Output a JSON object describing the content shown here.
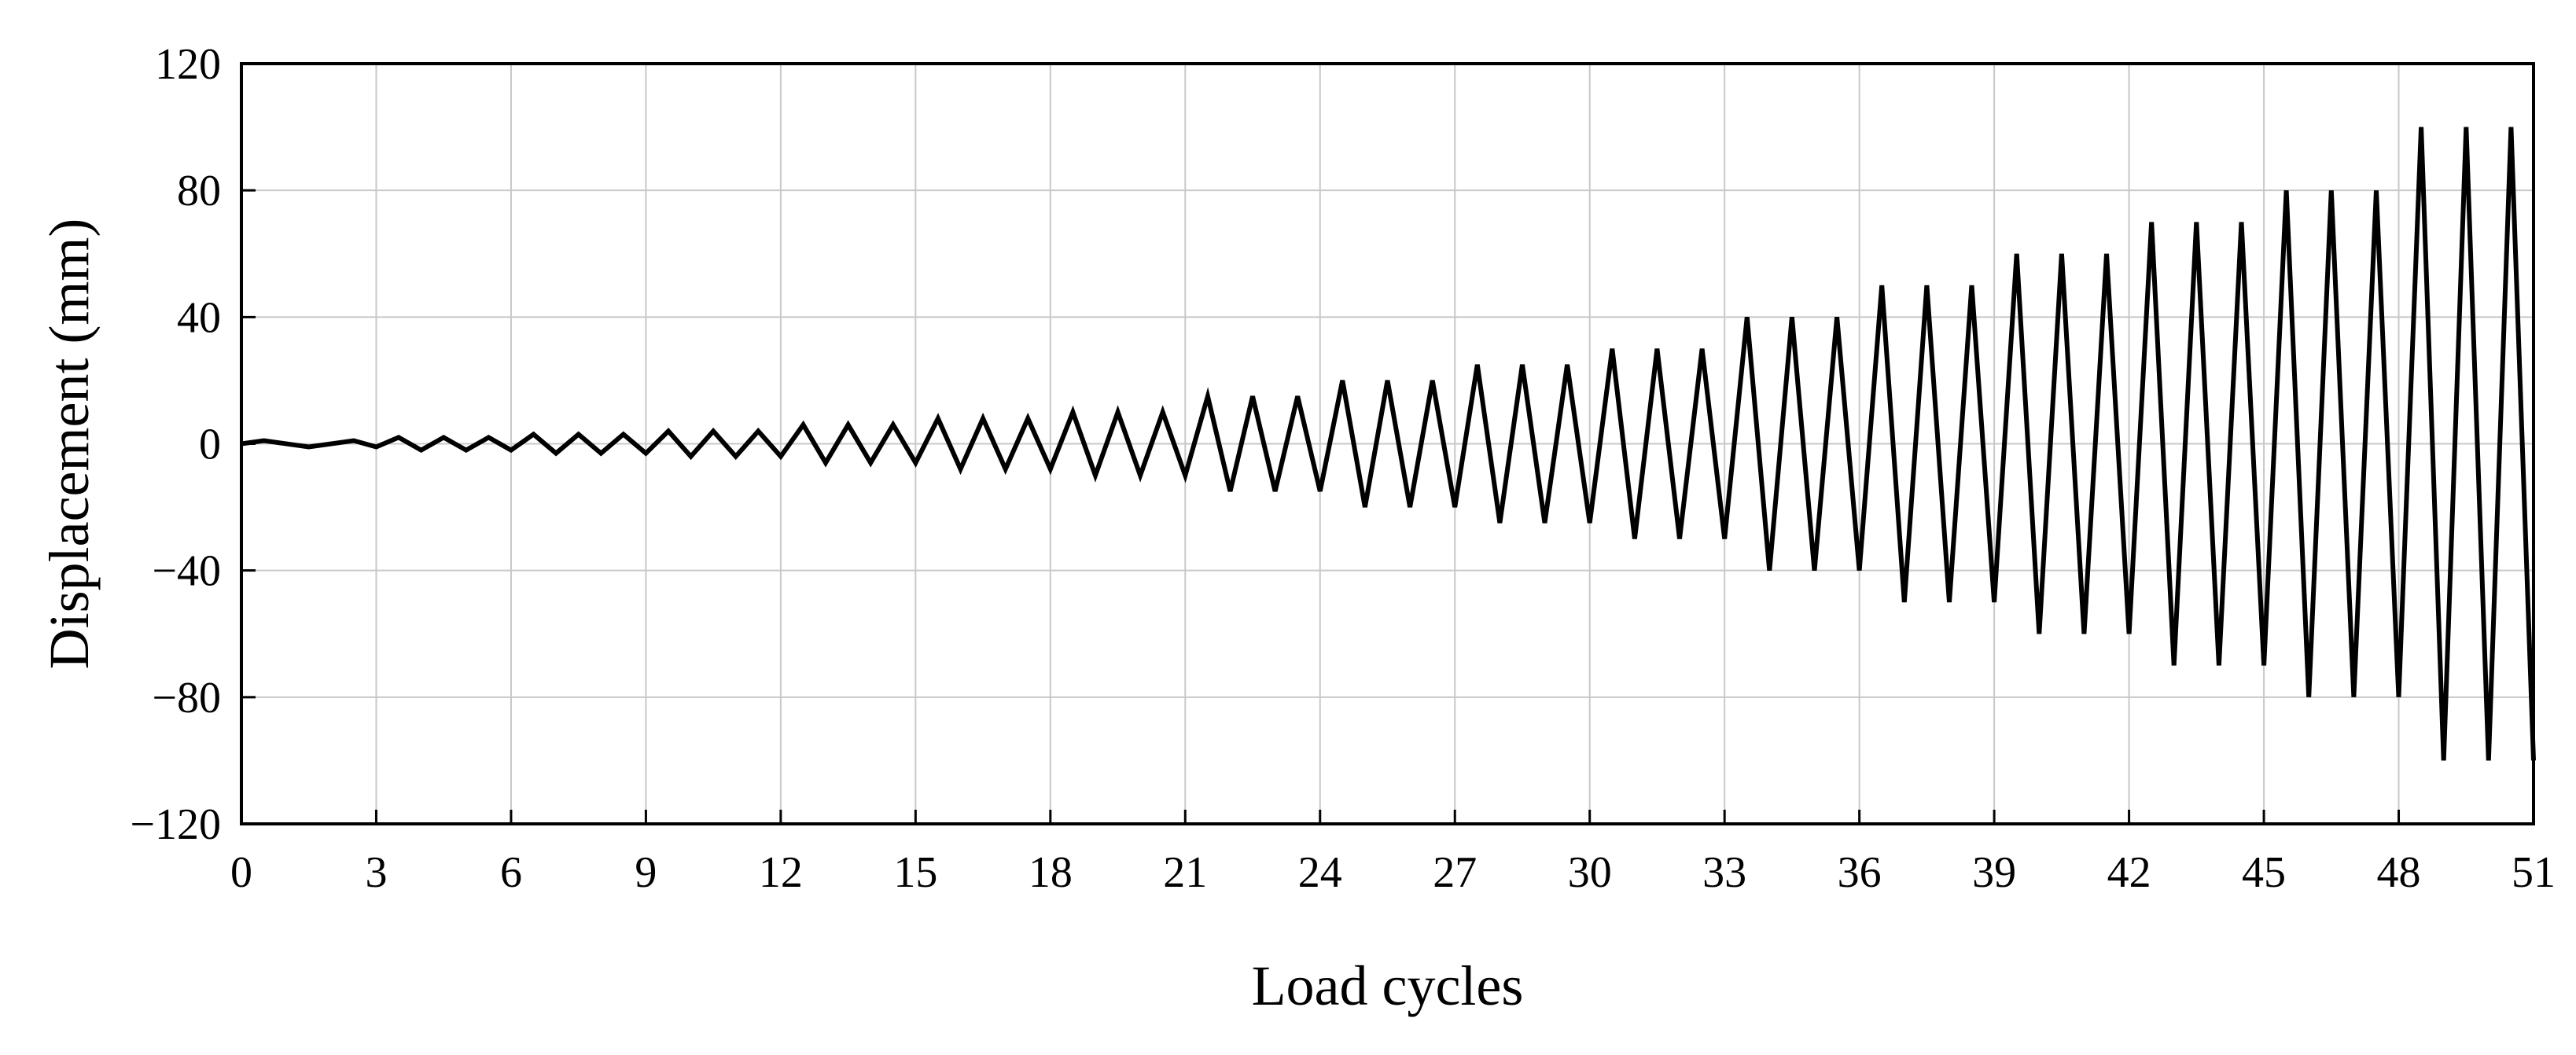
{
  "chart_data": {
    "type": "line",
    "title": "",
    "xlabel": "Load cycles",
    "ylabel": "Displacement (mm)",
    "xlim": [
      0,
      51
    ],
    "ylim": [
      -120,
      120
    ],
    "xticks": [
      0,
      3,
      6,
      9,
      12,
      15,
      18,
      21,
      24,
      27,
      30,
      33,
      36,
      39,
      42,
      45,
      48,
      51
    ],
    "yticks": [
      -120,
      -80,
      -40,
      0,
      40,
      80,
      120
    ],
    "ytick_labels": [
      "−120",
      "−80",
      "−40",
      "0",
      "40",
      "80",
      "120"
    ],
    "grid": true,
    "line_color": "#000000",
    "grid_color": "#c8c8c8",
    "cycles_per_level": 3,
    "amplitude_levels": [
      1,
      2,
      3,
      4,
      6,
      8,
      10,
      15,
      20,
      25,
      30,
      40,
      50,
      60,
      70,
      80,
      100
    ],
    "series": [
      {
        "values": [
          [
            0,
            0
          ],
          [
            0.5,
            1
          ],
          [
            1.5,
            -1
          ],
          [
            2.5,
            1
          ],
          [
            3,
            -1
          ],
          [
            3.5,
            2
          ],
          [
            4,
            -2
          ],
          [
            4.5,
            2
          ],
          [
            5,
            -2
          ],
          [
            5.5,
            2
          ],
          [
            6,
            -2
          ],
          [
            6.5,
            3
          ],
          [
            7,
            -3
          ],
          [
            7.5,
            3
          ],
          [
            8,
            -3
          ],
          [
            8.5,
            3
          ],
          [
            9,
            -3
          ],
          [
            9.5,
            4
          ],
          [
            10,
            -4
          ],
          [
            10.5,
            4
          ],
          [
            11,
            -4
          ],
          [
            11.5,
            4
          ],
          [
            12,
            -4
          ],
          [
            12.5,
            6
          ],
          [
            13,
            -6
          ],
          [
            13.5,
            6
          ],
          [
            14,
            -6
          ],
          [
            14.5,
            6
          ],
          [
            15,
            -6
          ],
          [
            15.5,
            8
          ],
          [
            16,
            -8
          ],
          [
            16.5,
            8
          ],
          [
            17,
            -8
          ],
          [
            17.5,
            8
          ],
          [
            18,
            -8
          ],
          [
            18.5,
            10
          ],
          [
            19,
            -10
          ],
          [
            19.5,
            10
          ],
          [
            20,
            -10
          ],
          [
            20.5,
            10
          ],
          [
            21,
            -10
          ],
          [
            21.5,
            15
          ],
          [
            22,
            -15
          ],
          [
            22.5,
            15
          ],
          [
            23,
            -15
          ],
          [
            23.5,
            15
          ],
          [
            24,
            -15
          ],
          [
            24.5,
            20
          ],
          [
            25,
            -20
          ],
          [
            25.5,
            20
          ],
          [
            26,
            -20
          ],
          [
            26.5,
            20
          ],
          [
            27,
            -20
          ],
          [
            27.5,
            25
          ],
          [
            28,
            -25
          ],
          [
            28.5,
            25
          ],
          [
            29,
            -25
          ],
          [
            29.5,
            25
          ],
          [
            30,
            -25
          ],
          [
            30.5,
            30
          ],
          [
            31,
            -30
          ],
          [
            31.5,
            30
          ],
          [
            32,
            -30
          ],
          [
            32.5,
            30
          ],
          [
            33,
            -30
          ],
          [
            33.5,
            40
          ],
          [
            34,
            -40
          ],
          [
            34.5,
            40
          ],
          [
            35,
            -40
          ],
          [
            35.5,
            40
          ],
          [
            36,
            -40
          ],
          [
            36.5,
            50
          ],
          [
            37,
            -50
          ],
          [
            37.5,
            50
          ],
          [
            38,
            -50
          ],
          [
            38.5,
            50
          ],
          [
            39,
            -50
          ],
          [
            39.5,
            60
          ],
          [
            40,
            -60
          ],
          [
            40.5,
            60
          ],
          [
            41,
            -60
          ],
          [
            41.5,
            60
          ],
          [
            42,
            -60
          ],
          [
            42.5,
            70
          ],
          [
            43,
            -70
          ],
          [
            43.5,
            70
          ],
          [
            44,
            -70
          ],
          [
            44.5,
            70
          ],
          [
            45,
            -70
          ],
          [
            45.5,
            80
          ],
          [
            46,
            -80
          ],
          [
            46.5,
            80
          ],
          [
            47,
            -80
          ],
          [
            47.5,
            80
          ],
          [
            48,
            -80
          ],
          [
            48.5,
            100
          ],
          [
            49,
            -100
          ],
          [
            49.5,
            100
          ],
          [
            50,
            -100
          ],
          [
            50.5,
            100
          ],
          [
            51,
            -100
          ]
        ]
      }
    ]
  }
}
